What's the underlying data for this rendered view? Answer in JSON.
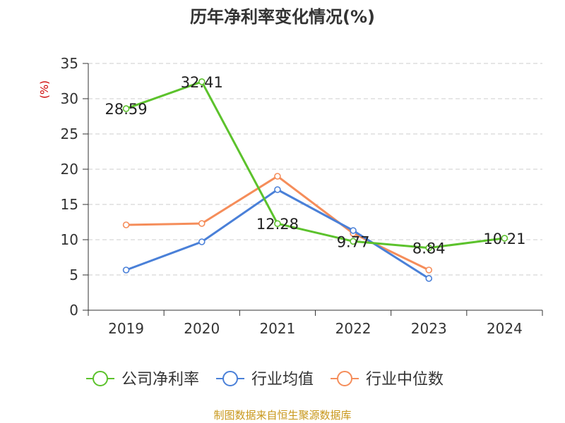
{
  "title": "历年净利率变化情况(%)",
  "source": "制图数据来自恒生聚源数据库",
  "colors": {
    "company": "#5cc22c",
    "industry_avg": "#4a80d8",
    "industry_median": "#f58d5a",
    "ylabel": "#cc0000",
    "source": "#c8971a",
    "grid": "#cccccc",
    "axis": "#333333"
  },
  "chart_data": {
    "type": "line",
    "title": "历年净利率变化情况(%)",
    "xlabel": "",
    "ylabel": "(%)",
    "ylim": [
      0,
      35
    ],
    "yticks": [
      0,
      5,
      10,
      15,
      20,
      25,
      30,
      35
    ],
    "grid": true,
    "legend_position": "bottom",
    "categories": [
      "2019",
      "2020",
      "2021",
      "2022",
      "2023",
      "2024"
    ],
    "series": [
      {
        "name": "公司净利率",
        "color": "#5cc22c",
        "values": [
          28.59,
          32.41,
          12.28,
          9.77,
          8.84,
          10.21
        ],
        "labels": [
          "28.59",
          "32.41",
          "12.28",
          "9.77",
          "8.84",
          "10.21"
        ]
      },
      {
        "name": "行业均值",
        "color": "#4a80d8",
        "values": [
          5.7,
          9.7,
          17.1,
          11.3,
          4.5,
          null
        ]
      },
      {
        "name": "行业中位数",
        "color": "#f58d5a",
        "values": [
          12.1,
          12.3,
          19.0,
          10.9,
          5.7,
          null
        ]
      }
    ]
  }
}
